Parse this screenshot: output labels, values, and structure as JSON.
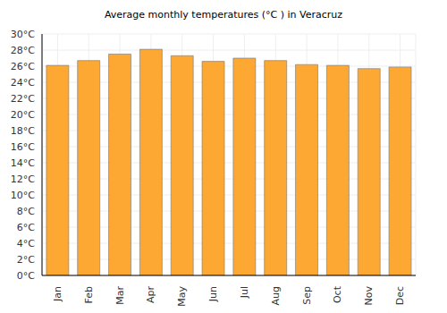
{
  "chart_data": {
    "type": "bar",
    "title": "Average monthly temperatures (°C ) in Veracruz",
    "categories": [
      "Jan",
      "Feb",
      "Mar",
      "Apr",
      "May",
      "Jun",
      "Jul",
      "Aug",
      "Sep",
      "Oct",
      "Nov",
      "Dec"
    ],
    "values": [
      26.1,
      26.7,
      27.5,
      28.1,
      27.3,
      26.6,
      27.0,
      26.7,
      26.2,
      26.1,
      25.7,
      25.9
    ],
    "color": "#fca833",
    "ylim": [
      0,
      30
    ],
    "yticks": [
      {
        "value": 0,
        "label": "0°C"
      },
      {
        "value": 2,
        "label": "2°C"
      },
      {
        "value": 4,
        "label": "4°C"
      },
      {
        "value": 6,
        "label": "6°C"
      },
      {
        "value": 8,
        "label": "8°C"
      },
      {
        "value": 10,
        "label": "10°C"
      },
      {
        "value": 12,
        "label": "12°C"
      },
      {
        "value": 14,
        "label": "14°C"
      },
      {
        "value": 16,
        "label": "16°C"
      },
      {
        "value": 18,
        "label": "18°C"
      },
      {
        "value": 20,
        "label": "20°C"
      },
      {
        "value": 22,
        "label": "22°C"
      },
      {
        "value": 24,
        "label": "24°C"
      },
      {
        "value": 26,
        "label": "26°C"
      },
      {
        "value": 28,
        "label": "28°C"
      },
      {
        "value": 30,
        "label": "30°C"
      }
    ],
    "grid": true
  }
}
